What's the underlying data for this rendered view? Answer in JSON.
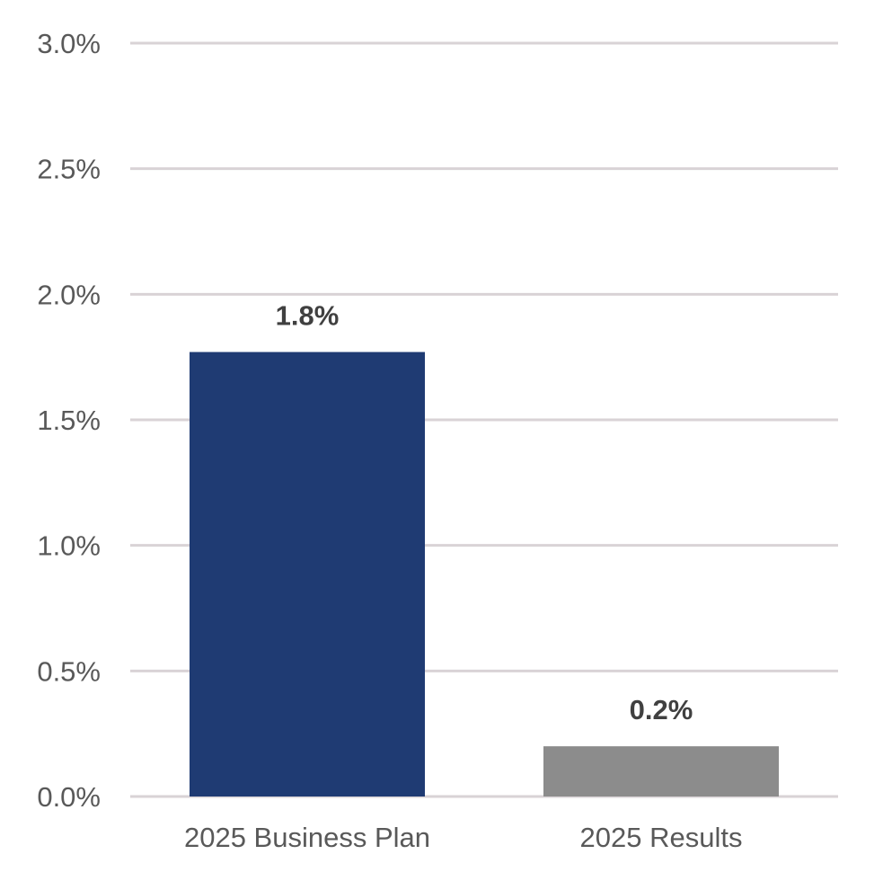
{
  "chart_data": {
    "type": "bar",
    "title": "",
    "xlabel": "",
    "ylabel": "",
    "categories": [
      "2025 Business Plan",
      "2025 Results"
    ],
    "values": [
      1.77,
      0.2
    ],
    "data_labels": [
      "1.8%",
      "0.2%"
    ],
    "colors": [
      "#1f3b73",
      "#8c8c8c"
    ],
    "ylim": [
      0,
      3.0
    ],
    "y_ticks": [
      0,
      0.5,
      1.0,
      1.5,
      2.0,
      2.5,
      3.0
    ],
    "y_tick_labels": [
      "0.0%",
      "0.5%",
      "1.0%",
      "1.5%",
      "2.0%",
      "2.5%",
      "3.0%"
    ],
    "grid": true,
    "legend": "none"
  }
}
